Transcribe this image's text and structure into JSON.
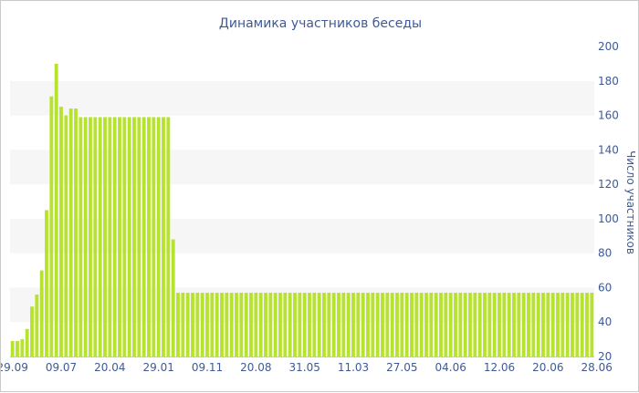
{
  "colors": {
    "bar": "#b7e22e",
    "band": "#f6f6f6",
    "text": "#3e5a96",
    "axis": "#c8c8c8"
  },
  "chart_data": {
    "type": "bar",
    "title": "Динамика участников беседы",
    "xlabel": "",
    "ylabel": "Число участников",
    "ylim": [
      20,
      200
    ],
    "y_ticks": [
      20,
      40,
      60,
      80,
      100,
      120,
      140,
      160,
      180,
      200
    ],
    "y_axis_position": "right",
    "grid": "alternating horizontal bands",
    "x_tick_labels": [
      "29.09",
      "09.07",
      "20.04",
      "29.01",
      "09.11",
      "20.08",
      "31.05",
      "11.03",
      "27.05",
      "04.06",
      "12.06",
      "20.06",
      "28.06"
    ],
    "x_tick_label_bar_index": [
      0,
      10,
      20,
      30,
      40,
      50,
      60,
      70,
      80,
      90,
      100,
      110,
      120
    ],
    "values": [
      29,
      29,
      30,
      36,
      49,
      56,
      70,
      105,
      171,
      190,
      165,
      160,
      164,
      164,
      159,
      159,
      159,
      159,
      159,
      159,
      159,
      159,
      159,
      159,
      159,
      159,
      159,
      159,
      159,
      159,
      159,
      159,
      159,
      88,
      57,
      57,
      57,
      57,
      57,
      57,
      57,
      57,
      57,
      57,
      57,
      57,
      57,
      57,
      57,
      57,
      57,
      57,
      57,
      57,
      57,
      57,
      57,
      57,
      57,
      57,
      57,
      57,
      57,
      57,
      57,
      57,
      57,
      57,
      57,
      57,
      57,
      57,
      57,
      57,
      57,
      57,
      57,
      57,
      57,
      57,
      57,
      57,
      57,
      57,
      57,
      57,
      57,
      57,
      57,
      57,
      57,
      57,
      57,
      57,
      57,
      57,
      57,
      57,
      57,
      57,
      57,
      57,
      57,
      57,
      57,
      57,
      57,
      57,
      57,
      57,
      57,
      57,
      57,
      57,
      57,
      57,
      57,
      57,
      57,
      57
    ]
  }
}
